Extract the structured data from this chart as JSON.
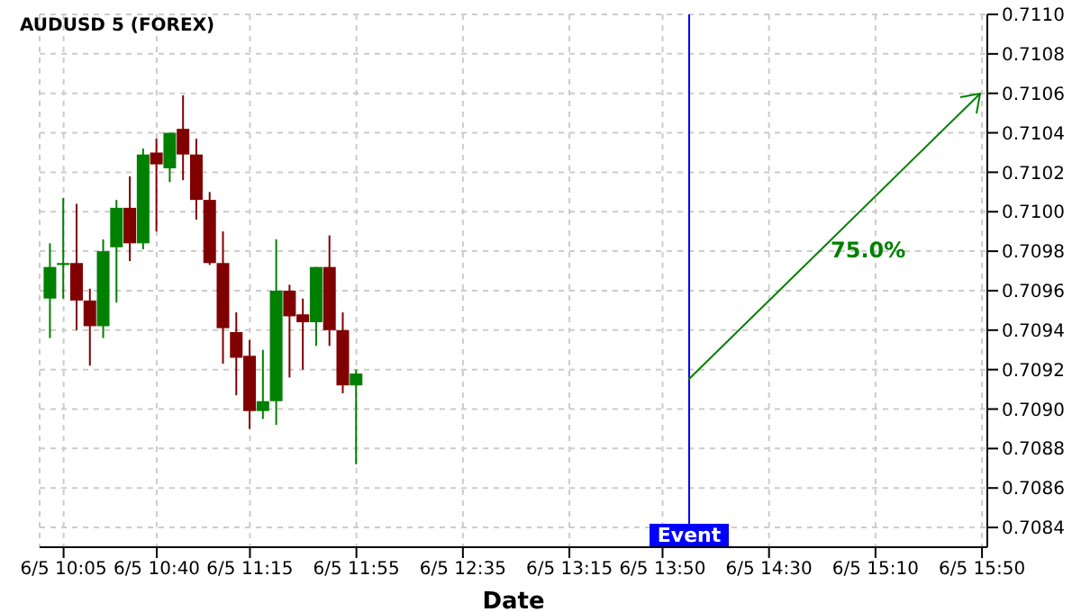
{
  "chart_data": {
    "type": "candlestick",
    "title": "AUDUSD 5 (FOREX)",
    "xlabel": "Date",
    "x": [
      "--06-05T10:00",
      "--06-05T10:05",
      "--06-05T10:10",
      "--06-05T10:15",
      "--06-05T10:20",
      "--06-05T10:25",
      "--06-05T10:30",
      "--06-05T10:35",
      "--06-05T10:40",
      "--06-05T10:45",
      "--06-05T10:50",
      "--06-05T10:55",
      "--06-05T11:00",
      "--06-05T11:05",
      "--06-05T11:10",
      "--06-05T11:15",
      "--06-05T11:20",
      "--06-05T11:25",
      "--06-05T11:30",
      "--06-05T11:35",
      "--06-05T11:40",
      "--06-05T11:45",
      "--06-05T11:50",
      "--06-05T11:55"
    ],
    "ohlc": [
      [
        0.70956,
        0.70984,
        0.70936,
        0.70972
      ],
      [
        0.70973,
        0.71007,
        0.70956,
        0.70974
      ],
      [
        0.70974,
        0.71004,
        0.7094,
        0.70955
      ],
      [
        0.70955,
        0.70961,
        0.70922,
        0.70942
      ],
      [
        0.70942,
        0.70986,
        0.70936,
        0.7098
      ],
      [
        0.70982,
        0.71006,
        0.70954,
        0.71002
      ],
      [
        0.71002,
        0.71018,
        0.70975,
        0.70984
      ],
      [
        0.70984,
        0.71032,
        0.70981,
        0.71029
      ],
      [
        0.7103,
        0.71037,
        0.7099,
        0.71024
      ],
      [
        0.71022,
        0.7104,
        0.71015,
        0.7104
      ],
      [
        0.71042,
        0.71059,
        0.71016,
        0.71029
      ],
      [
        0.71029,
        0.71037,
        0.70996,
        0.71006
      ],
      [
        0.71006,
        0.7101,
        0.70973,
        0.70974
      ],
      [
        0.70974,
        0.7099,
        0.70923,
        0.70941
      ],
      [
        0.70939,
        0.70949,
        0.70907,
        0.70926
      ],
      [
        0.70927,
        0.70935,
        0.7089,
        0.70899
      ],
      [
        0.70899,
        0.7093,
        0.70895,
        0.70904
      ],
      [
        0.70904,
        0.70986,
        0.70892,
        0.7096
      ],
      [
        0.7096,
        0.70963,
        0.70916,
        0.70947
      ],
      [
        0.70948,
        0.70956,
        0.7092,
        0.70944
      ],
      [
        0.70944,
        0.70972,
        0.70932,
        0.70972
      ],
      [
        0.70972,
        0.70988,
        0.70932,
        0.7094
      ],
      [
        0.7094,
        0.70949,
        0.70908,
        0.70912
      ],
      [
        0.70912,
        0.7092,
        0.70872,
        0.70918
      ]
    ],
    "colors": [
      "#008000",
      "#008000",
      "#800000",
      "#800000",
      "#008000",
      "#008000",
      "#800000",
      "#008000",
      "#800000",
      "#008000",
      "#800000",
      "#800000",
      "#800000",
      "#800000",
      "#800000",
      "#800000",
      "#008000",
      "#008000",
      "#800000",
      "#800000",
      "#008000",
      "#800000",
      "#800000",
      "#008000"
    ],
    "annotations": [
      "75.0%"
    ],
    "ref_lines": [
      {
        "axis": "x",
        "value": "--06-05T14:00",
        "label": "Event",
        "color": "#0000ff"
      }
    ],
    "xlim": [
      "--06-05T09:56",
      "--06-05T15:52"
    ],
    "xticks": [
      {
        "value": "--06-05T10:05",
        "label": "6/5 10:05"
      },
      {
        "value": "--06-05T10:40",
        "label": "6/5 10:40"
      },
      {
        "value": "--06-05T11:15",
        "label": "6/5 11:15"
      },
      {
        "value": "--06-05T11:55",
        "label": "6/5 11:55"
      },
      {
        "value": "--06-05T12:35",
        "label": "6/5 12:35"
      },
      {
        "value": "--06-05T13:15",
        "label": "6/5 13:15"
      },
      {
        "value": "--06-05T13:50",
        "label": "6/5 13:50"
      },
      {
        "value": "--06-05T14:30",
        "label": "6/5 14:30"
      },
      {
        "value": "--06-05T15:10",
        "label": "6/5 15:10"
      },
      {
        "value": "--06-05T15:50",
        "label": "6/5 15:50"
      }
    ],
    "ylim": [
      0.7083,
      0.711
    ],
    "yticks": [
      0.7084,
      0.7086,
      0.7088,
      {
        "value": 0.709,
        "label": "0.7090"
      },
      0.7092,
      0.7094,
      0.7096,
      0.7098,
      {
        "value": 0.71,
        "label": "0.7100"
      },
      0.7102,
      0.7104,
      0.7106,
      0.7108,
      {
        "value": 0.711,
        "label": "0.7110"
      }
    ],
    "grid": true
  }
}
